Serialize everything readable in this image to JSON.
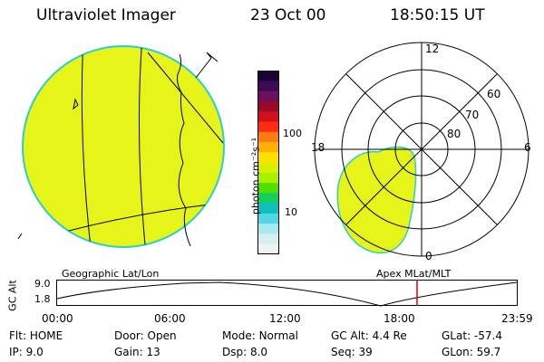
{
  "header": {
    "instrument": "Ultraviolet Imager",
    "date": "23 Oct 00",
    "time": "18:50:15 UT"
  },
  "colorbar": {
    "unit_label": "photon cm⁻²s⁻¹",
    "ticks": [
      "100",
      "10"
    ],
    "colors": [
      "#1a0033",
      "#3d0a55",
      "#6b0f5e",
      "#990a2a",
      "#d0101a",
      "#ff2a10",
      "#ff7a10",
      "#ffb000",
      "#ffe000",
      "#d8f000",
      "#a6f000",
      "#50e000",
      "#10d060",
      "#10c0c0",
      "#50d8e8",
      "#a8e8f0",
      "#d8eef0",
      "#eef2f2"
    ]
  },
  "polar": {
    "mlt_labels": [
      "12",
      "18",
      "6",
      "0"
    ],
    "lat_labels": [
      "60",
      "70",
      "80"
    ]
  },
  "timeline": {
    "left_title": "Geographic Lat/Lon",
    "right_title": "Apex MLat/MLT",
    "axis_label": "GC Alt",
    "y_ticks": [
      "9.0",
      "1.8"
    ],
    "x_ticks": [
      "00:00",
      "06:00",
      "12:00",
      "18:00",
      "23:59"
    ],
    "marker_color": "#e00000"
  },
  "footer": {
    "rows": [
      [
        {
          "label": "Flt:",
          "value": "HOME"
        },
        {
          "label": "Door:",
          "value": "Open"
        },
        {
          "label": "Mode:",
          "value": "Normal"
        },
        {
          "label": "GC Alt:",
          "value": "4.4 Re"
        },
        {
          "label": "GLat:",
          "value": "-57.4"
        }
      ],
      [
        {
          "label": "IP:",
          "value": "9.0"
        },
        {
          "label": "Gain:",
          "value": "13"
        },
        {
          "label": "Dsp:",
          "value": "8.0"
        },
        {
          "label": "Seq:",
          "value": "39"
        },
        {
          "label": "GLon:",
          "value": "59.7"
        }
      ]
    ]
  }
}
